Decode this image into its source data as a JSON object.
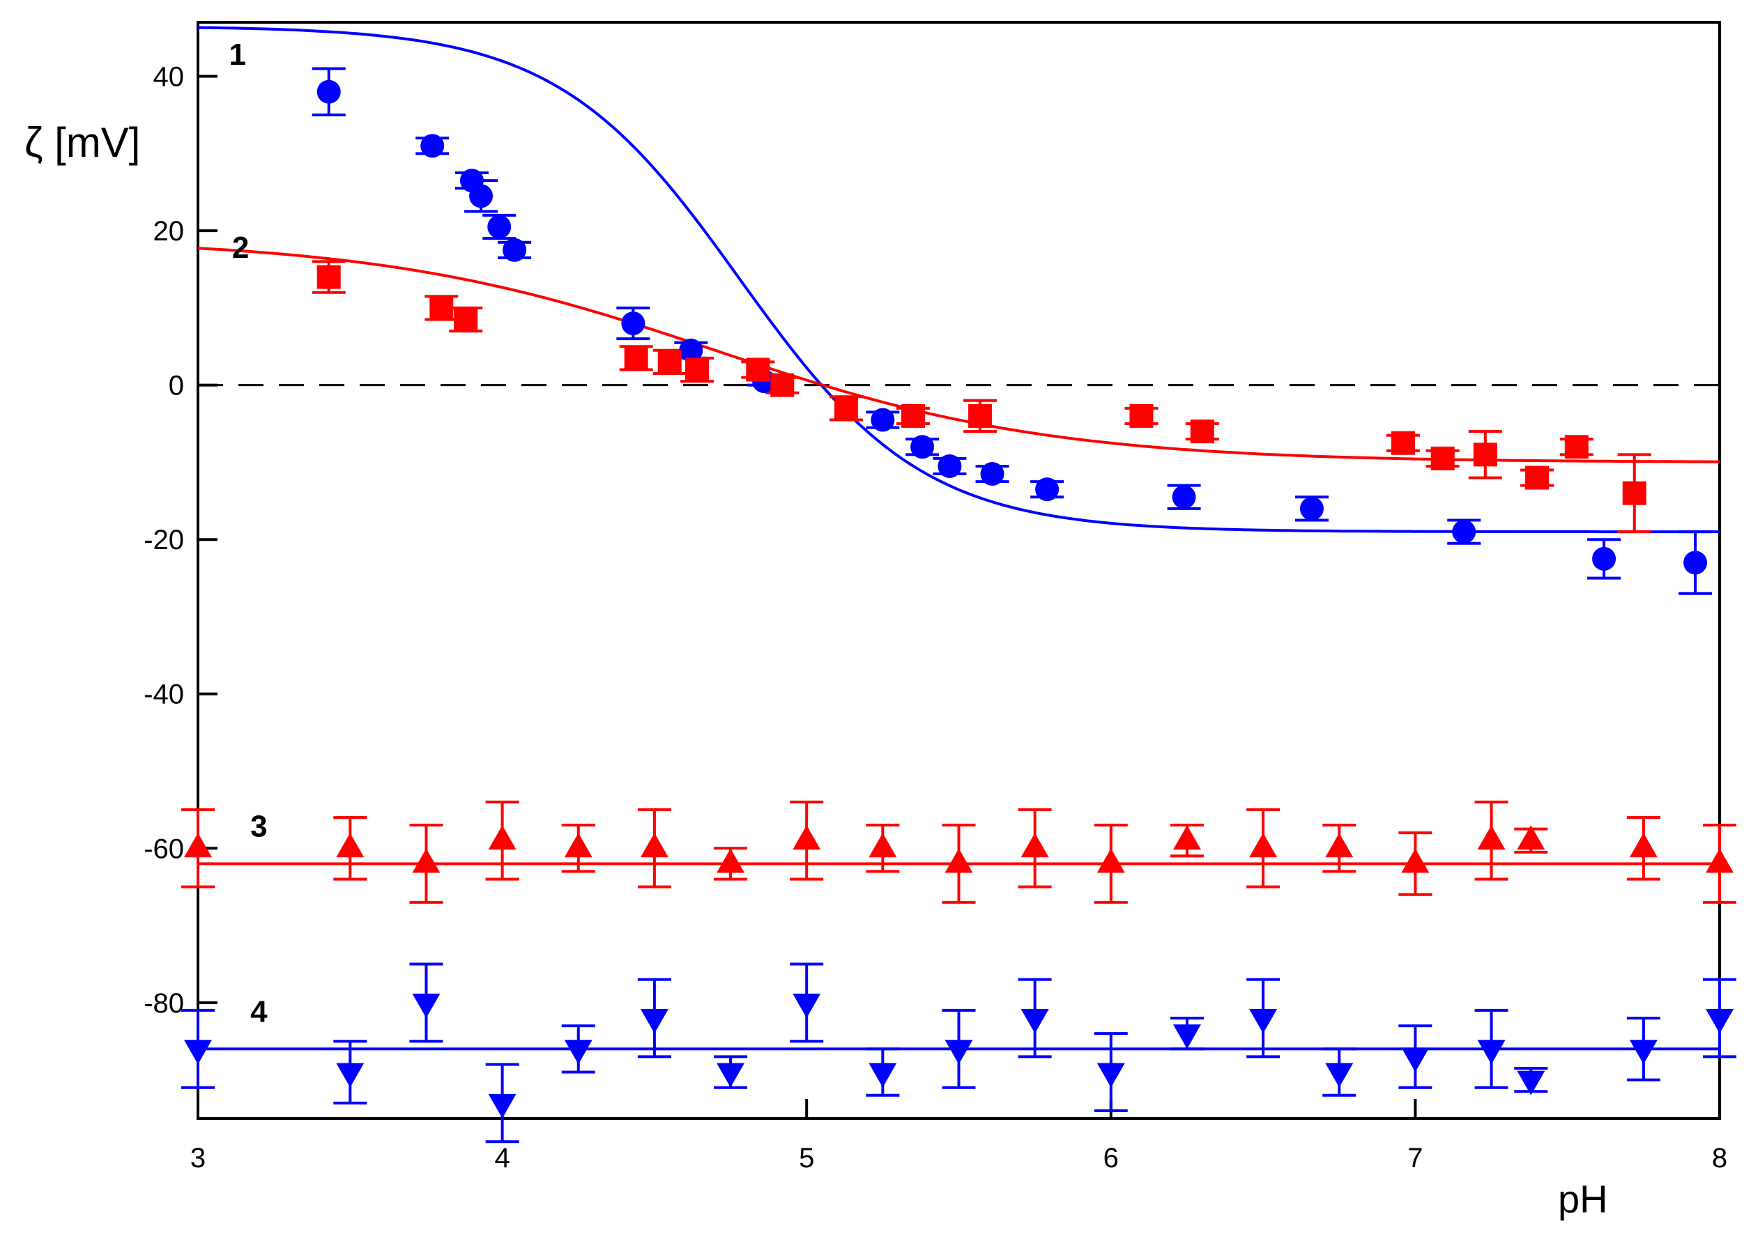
{
  "chart_data": {
    "type": "scatter",
    "title": "",
    "xlabel": "pH",
    "ylabel": "ζ [mV]",
    "xlim": [
      3,
      8
    ],
    "ylim": [
      -95,
      47
    ],
    "xticks": [
      "3",
      "4",
      "5",
      "6",
      "7",
      "8"
    ],
    "yticks": [
      "40",
      "20",
      "0",
      "-20",
      "-40",
      "-60",
      "-80"
    ],
    "zero_line": {
      "y": 0,
      "style": "dashed"
    },
    "colors": {
      "red": "#ff0000",
      "blue": "#0000ff"
    },
    "series": [
      {
        "name": "1",
        "marker": "circle",
        "color": "#0000ff",
        "fit": {
          "type": "sigmoid",
          "upper": 46.5,
          "lower": -19.0,
          "center": 4.78,
          "width": 0.3
        },
        "points": [
          {
            "x": 3.43,
            "y": 38.0,
            "err": 3.0
          },
          {
            "x": 3.77,
            "y": 31.0,
            "err": 1.0
          },
          {
            "x": 3.9,
            "y": 26.5,
            "err": 1.0
          },
          {
            "x": 3.93,
            "y": 24.5,
            "err": 2.0
          },
          {
            "x": 3.99,
            "y": 20.5,
            "err": 1.5
          },
          {
            "x": 4.04,
            "y": 17.5,
            "err": 1.0
          },
          {
            "x": 4.43,
            "y": 8.0,
            "err": 2.0
          },
          {
            "x": 4.62,
            "y": 4.5,
            "err": 1.0
          },
          {
            "x": 4.86,
            "y": 0.5,
            "err": 0.5
          },
          {
            "x": 5.25,
            "y": -4.5,
            "err": 1.0
          },
          {
            "x": 5.38,
            "y": -8.0,
            "err": 1.0
          },
          {
            "x": 5.47,
            "y": -10.5,
            "err": 1.0
          },
          {
            "x": 5.61,
            "y": -11.5,
            "err": 1.0
          },
          {
            "x": 5.79,
            "y": -13.5,
            "err": 1.0
          },
          {
            "x": 6.24,
            "y": -14.5,
            "err": 1.5
          },
          {
            "x": 6.66,
            "y": -16.0,
            "err": 1.5
          },
          {
            "x": 7.16,
            "y": -19.0,
            "err": 1.5
          },
          {
            "x": 7.62,
            "y": -22.5,
            "err": 2.5
          },
          {
            "x": 7.92,
            "y": -23.0,
            "err": 4.0
          }
        ]
      },
      {
        "name": "2",
        "marker": "square",
        "color": "#ff0000",
        "fit": {
          "type": "sigmoid",
          "upper": 19.0,
          "lower": -10.0,
          "center": 4.7,
          "width": 0.55
        },
        "points": [
          {
            "x": 3.43,
            "y": 14.0,
            "err": 2.0
          },
          {
            "x": 3.8,
            "y": 10.0,
            "err": 1.5
          },
          {
            "x": 3.88,
            "y": 8.5,
            "err": 1.5
          },
          {
            "x": 4.44,
            "y": 3.5,
            "err": 1.5
          },
          {
            "x": 4.55,
            "y": 3.0,
            "err": 1.5
          },
          {
            "x": 4.64,
            "y": 2.0,
            "err": 1.5
          },
          {
            "x": 4.84,
            "y": 2.0,
            "err": 1.0
          },
          {
            "x": 4.92,
            "y": 0.0,
            "err": 1.0
          },
          {
            "x": 5.13,
            "y": -3.0,
            "err": 1.5
          },
          {
            "x": 5.35,
            "y": -4.0,
            "err": 1.0
          },
          {
            "x": 5.57,
            "y": -4.0,
            "err": 2.0
          },
          {
            "x": 6.1,
            "y": -4.0,
            "err": 1.0
          },
          {
            "x": 6.3,
            "y": -6.0,
            "err": 1.0
          },
          {
            "x": 6.96,
            "y": -7.5,
            "err": 1.0
          },
          {
            "x": 7.09,
            "y": -9.5,
            "err": 1.0
          },
          {
            "x": 7.23,
            "y": -9.0,
            "err": 3.0
          },
          {
            "x": 7.4,
            "y": -12.0,
            "err": 1.0
          },
          {
            "x": 7.53,
            "y": -8.0,
            "err": 1.0
          },
          {
            "x": 7.72,
            "y": -14.0,
            "err": 5.0
          }
        ]
      },
      {
        "name": "3",
        "marker": "triangle-up",
        "color": "#ff0000",
        "fit": {
          "type": "constant",
          "value": -62.0
        },
        "points": [
          {
            "x": 3.0,
            "y": -60.0,
            "err": 5.0
          },
          {
            "x": 3.5,
            "y": -60.0,
            "err": 4.0
          },
          {
            "x": 3.75,
            "y": -62.0,
            "err": 5.0
          },
          {
            "x": 4.0,
            "y": -59.0,
            "err": 5.0
          },
          {
            "x": 4.25,
            "y": -60.0,
            "err": 3.0
          },
          {
            "x": 4.5,
            "y": -60.0,
            "err": 5.0
          },
          {
            "x": 4.75,
            "y": -62.0,
            "err": 2.0
          },
          {
            "x": 5.0,
            "y": -59.0,
            "err": 5.0
          },
          {
            "x": 5.25,
            "y": -60.0,
            "err": 3.0
          },
          {
            "x": 5.5,
            "y": -62.0,
            "err": 5.0
          },
          {
            "x": 5.75,
            "y": -60.0,
            "err": 5.0
          },
          {
            "x": 6.0,
            "y": -62.0,
            "err": 5.0
          },
          {
            "x": 6.25,
            "y": -59.0,
            "err": 2.0
          },
          {
            "x": 6.5,
            "y": -60.0,
            "err": 5.0
          },
          {
            "x": 6.75,
            "y": -60.0,
            "err": 3.0
          },
          {
            "x": 7.0,
            "y": -62.0,
            "err": 4.0
          },
          {
            "x": 7.25,
            "y": -59.0,
            "err": 5.0
          },
          {
            "x": 7.38,
            "y": -59.0,
            "err": 1.5
          },
          {
            "x": 7.75,
            "y": -60.0,
            "err": 4.0
          },
          {
            "x": 8.0,
            "y": -62.0,
            "err": 5.0
          }
        ]
      },
      {
        "name": "4",
        "marker": "triangle-down",
        "color": "#0000ff",
        "fit": {
          "type": "constant",
          "value": -86.0
        },
        "points": [
          {
            "x": 3.0,
            "y": -86.0,
            "err": 5.0
          },
          {
            "x": 3.5,
            "y": -89.0,
            "err": 4.0
          },
          {
            "x": 3.75,
            "y": -80.0,
            "err": 5.0
          },
          {
            "x": 4.0,
            "y": -93.0,
            "err": 5.0
          },
          {
            "x": 4.25,
            "y": -86.0,
            "err": 3.0
          },
          {
            "x": 4.5,
            "y": -82.0,
            "err": 5.0
          },
          {
            "x": 4.75,
            "y": -89.0,
            "err": 2.0
          },
          {
            "x": 5.0,
            "y": -80.0,
            "err": 5.0
          },
          {
            "x": 5.25,
            "y": -89.0,
            "err": 3.0
          },
          {
            "x": 5.5,
            "y": -86.0,
            "err": 5.0
          },
          {
            "x": 5.75,
            "y": -82.0,
            "err": 5.0
          },
          {
            "x": 6.0,
            "y": -89.0,
            "err": 5.0
          },
          {
            "x": 6.25,
            "y": -84.0,
            "err": 2.0
          },
          {
            "x": 6.5,
            "y": -82.0,
            "err": 5.0
          },
          {
            "x": 6.75,
            "y": -89.0,
            "err": 3.0
          },
          {
            "x": 7.0,
            "y": -87.0,
            "err": 4.0
          },
          {
            "x": 7.25,
            "y": -86.0,
            "err": 5.0
          },
          {
            "x": 7.38,
            "y": -90.0,
            "err": 1.5
          },
          {
            "x": 7.75,
            "y": -86.0,
            "err": 4.0
          },
          {
            "x": 8.0,
            "y": -82.0,
            "err": 5.0
          }
        ]
      }
    ]
  }
}
